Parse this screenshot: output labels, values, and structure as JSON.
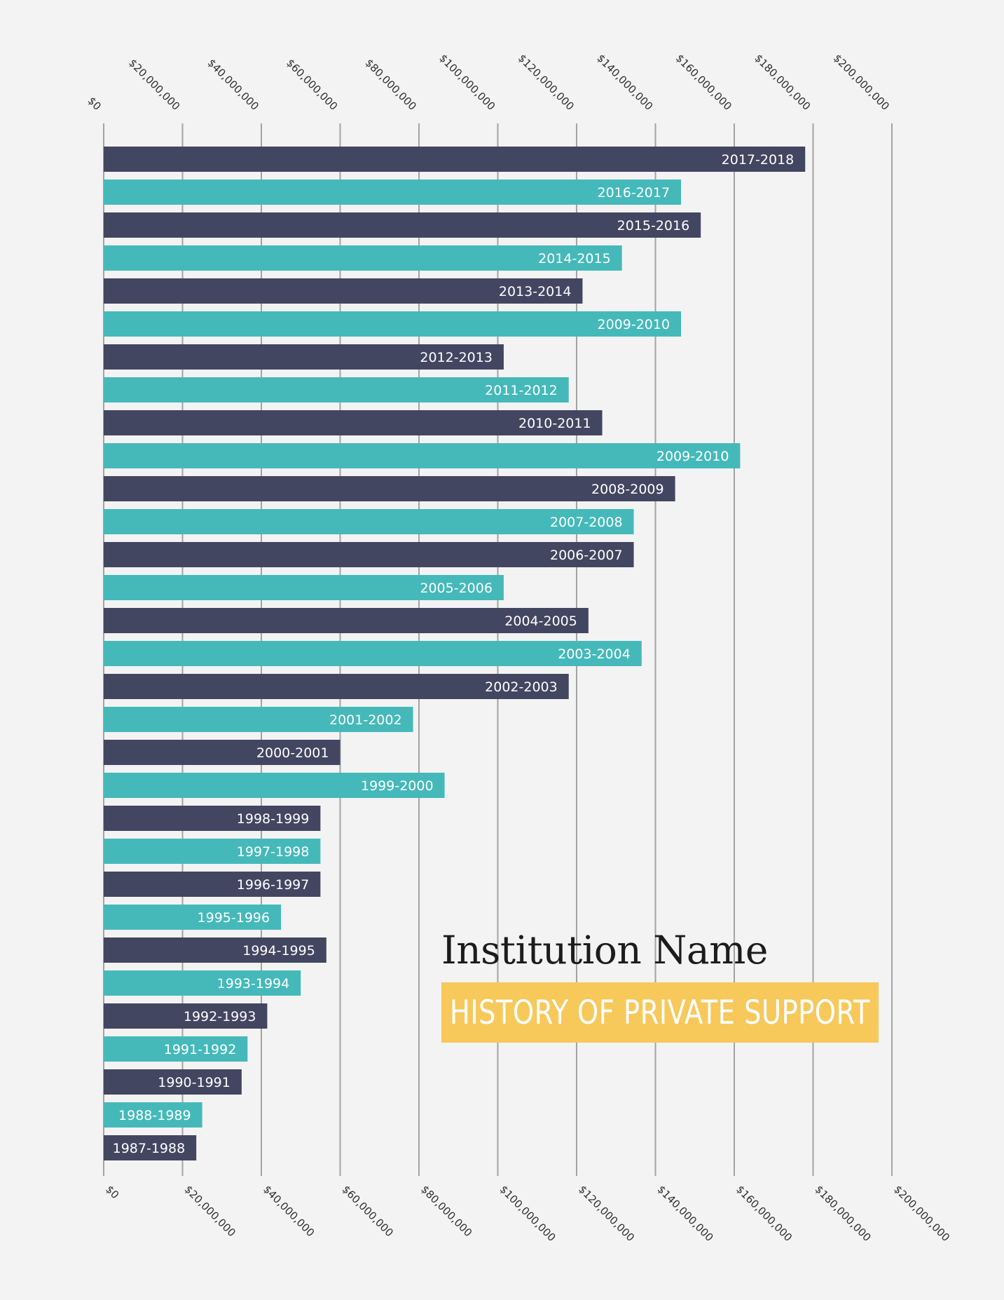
{
  "title": "Institution Name",
  "subtitle": "HISTORY OF PRIVATE SUPPORT",
  "colors": {
    "dark": "#434661",
    "teal": "#45b9ba",
    "accent": "#f7c85a",
    "background": "#f3f3f3",
    "grid": "#a3a3a3"
  },
  "chart_data": {
    "type": "bar",
    "orientation": "horizontal",
    "xlim": [
      0,
      200000000
    ],
    "tick_values": [
      0,
      20000000,
      40000000,
      60000000,
      80000000,
      100000000,
      120000000,
      140000000,
      160000000,
      180000000,
      200000000
    ],
    "tick_labels": [
      "$0",
      "$20,000,000",
      "$40,000,000",
      "$60,000,000",
      "$80,000,000",
      "$100,000,000",
      "$120,000,000",
      "$140,000,000",
      "$160,000,000",
      "$180,000,000",
      "$200,000,000"
    ],
    "categories": [
      "2017-2018",
      "2016-2017",
      "2015-2016",
      "2014-2015",
      "2013-2014",
      "2009-2010",
      "2012-2013",
      "2011-2012",
      "2010-2011",
      "2009-2010",
      "2008-2009",
      "2007-2008",
      "2006-2007",
      "2005-2006",
      "2004-2005",
      "2003-2004",
      "2002-2003",
      "2001-2002",
      "2000-2001",
      "1999-2000",
      "1998-1999",
      "1997-1998",
      "1996-1997",
      "1995-1996",
      "1994-1995",
      "1993-1994",
      "1992-1993",
      "1991-1992",
      "1990-1991",
      "1988-1989",
      "1987-1988"
    ],
    "values": [
      178000000,
      146500000,
      151500000,
      131500000,
      121500000,
      146500000,
      101500000,
      118000000,
      126500000,
      161500000,
      145000000,
      134500000,
      134500000,
      101500000,
      123000000,
      136500000,
      118000000,
      78500000,
      60000000,
      86500000,
      55000000,
      55000000,
      55000000,
      45000000,
      56500000,
      50000000,
      41500000,
      36500000,
      35000000,
      25000000,
      23500000
    ],
    "bar_colors": [
      "dark",
      "teal",
      "dark",
      "teal",
      "dark",
      "teal",
      "dark",
      "teal",
      "dark",
      "teal",
      "dark",
      "teal",
      "dark",
      "teal",
      "dark",
      "teal",
      "dark",
      "teal",
      "dark",
      "teal",
      "dark",
      "teal",
      "dark",
      "teal",
      "dark",
      "teal",
      "dark",
      "teal",
      "dark",
      "teal",
      "dark"
    ],
    "grid": true,
    "axis_labels_position": "top and bottom"
  }
}
